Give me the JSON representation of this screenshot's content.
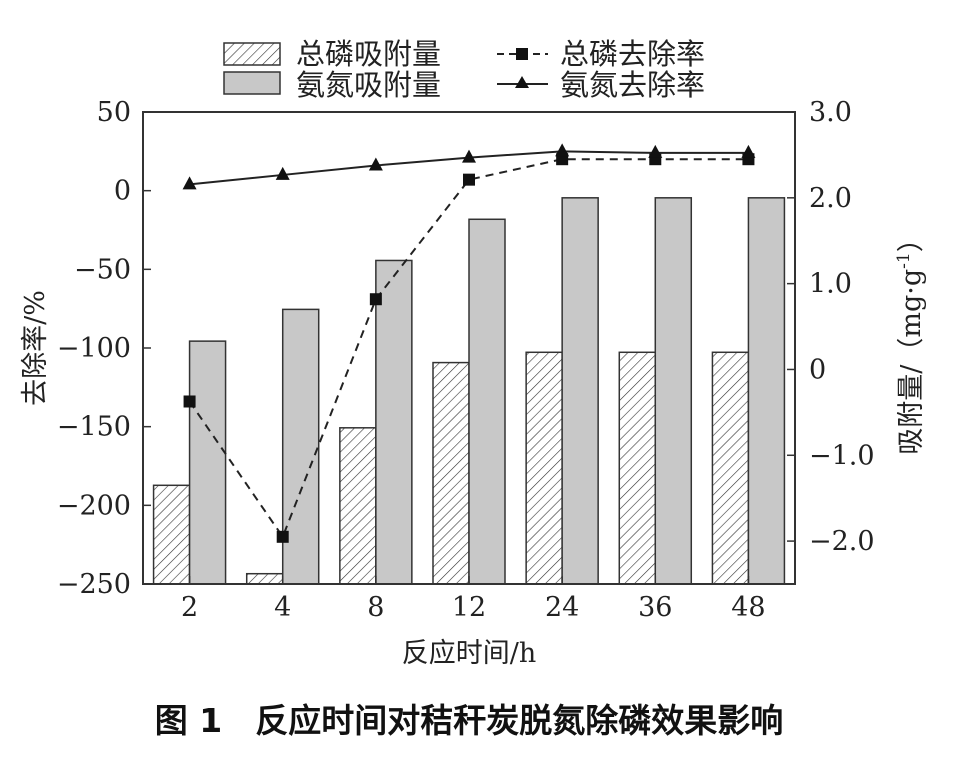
{
  "chart_data": {
    "type": "bar",
    "caption": "图 1　反应时间对秸秆炭脱氮除磷效果影响",
    "xlabel": "反应时间/h",
    "ylabel_left": "去除率/%",
    "ylabel_right": "吸附量/（mg·g",
    "ylabel_right_sup": "-1",
    "ylabel_right_close": "）",
    "categories": [
      "2",
      "4",
      "8",
      "12",
      "24",
      "36",
      "48"
    ],
    "left_axis": {
      "min": -250,
      "max": 50,
      "ticks": [
        50,
        0,
        -50,
        -100,
        -150,
        -200,
        -250
      ],
      "tick_labels": [
        "50",
        "0",
        "−50",
        "−100",
        "−150",
        "−200",
        "−250"
      ]
    },
    "right_axis": {
      "min": -2.5,
      "max": 3.0,
      "ticks": [
        3.0,
        2.0,
        1.0,
        0,
        -1.0,
        -2.0
      ],
      "tick_labels": [
        "3.0",
        "2.0",
        "1.0",
        "0",
        "−1.0",
        "−2.0"
      ]
    },
    "legend_position": "top",
    "grid": false,
    "bar_series": [
      {
        "name": "总磷吸附量",
        "axis": "right",
        "pattern": "hatch",
        "values": [
          -1.35,
          -2.38,
          -0.68,
          0.08,
          0.2,
          0.2,
          0.2
        ]
      },
      {
        "name": "氨氮吸附量",
        "axis": "right",
        "pattern": "gray",
        "values": [
          0.33,
          0.7,
          1.27,
          1.75,
          2.0,
          2.0,
          2.0
        ]
      }
    ],
    "line_series": [
      {
        "name": "总磷去除率",
        "axis": "left",
        "style": "dashed",
        "marker": "square",
        "values": [
          -134,
          -220,
          -69,
          7,
          20,
          20,
          20
        ]
      },
      {
        "name": "氨氮去除率",
        "axis": "left",
        "style": "solid",
        "marker": "triangle",
        "values": [
          4,
          10,
          16,
          21,
          25,
          24,
          24
        ]
      }
    ]
  }
}
